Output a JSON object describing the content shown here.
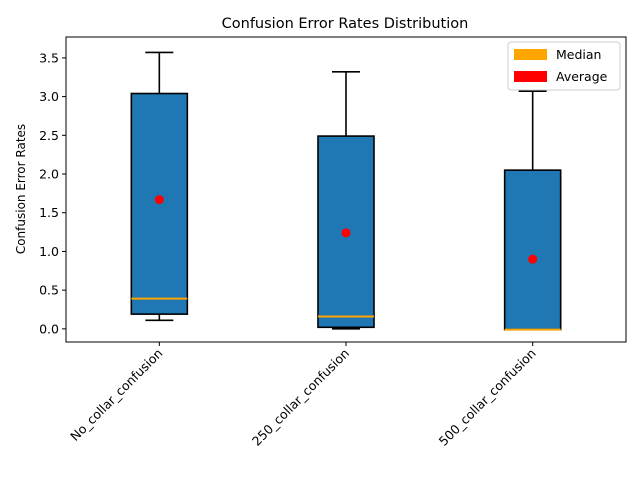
{
  "chart_data": {
    "type": "box",
    "title": "Confusion Error Rates Distribution",
    "xlabel": "",
    "ylabel": "Confusion Error Rates",
    "ylim": [
      -0.17,
      3.77
    ],
    "yticks": [
      0.0,
      0.5,
      1.0,
      1.5,
      2.0,
      2.5,
      3.0,
      3.5
    ],
    "ytick_labels": [
      "0.0",
      "0.5",
      "1.0",
      "1.5",
      "2.0",
      "2.5",
      "3.0",
      "3.5"
    ],
    "categories": [
      "No_collar_confusion",
      "250_collar_confusion",
      "500_collar_confusion"
    ],
    "boxes": [
      {
        "whislo": 0.11,
        "q1": 0.19,
        "med": 0.39,
        "q3": 3.04,
        "whishi": 3.57,
        "mean": 1.67
      },
      {
        "whislo": 0.0,
        "q1": 0.02,
        "med": 0.16,
        "q3": 2.49,
        "whishi": 3.32,
        "mean": 1.24
      },
      {
        "whislo": -0.01,
        "q1": -0.01,
        "med": -0.01,
        "q3": 2.05,
        "whishi": 3.07,
        "mean": 0.9
      }
    ],
    "legend": {
      "position": "top-right",
      "items": [
        {
          "label": "Median",
          "color": "#ffa500"
        },
        {
          "label": "Average",
          "color": "#ff0000"
        }
      ]
    },
    "colors": {
      "box_fill": "#1f77b4",
      "box_edge": "#000000",
      "median": "#ffa500",
      "mean": "#ff0000"
    }
  }
}
